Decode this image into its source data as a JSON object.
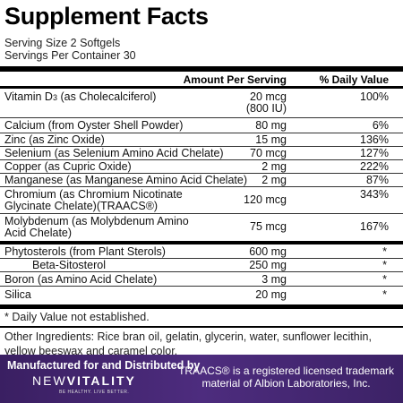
{
  "title": "Supplement Facts",
  "serving_size": "Serving Size 2 Softgels",
  "servings_per_container": "Servings Per Container 30",
  "headers": {
    "amount": "Amount Per Serving",
    "dv": "% Daily Value"
  },
  "rows": [
    {
      "name": [
        "Vitamin D3 (as Cholecalciferol)"
      ],
      "amount": [
        "20 mcg",
        "(800 IU)"
      ],
      "dv": "100%"
    },
    {
      "name": [
        "Calcium (from Oyster Shell Powder)"
      ],
      "amount": [
        "80 mg"
      ],
      "dv": "6%"
    },
    {
      "name": [
        "Zinc (as Zinc Oxide)"
      ],
      "amount": [
        "15 mg"
      ],
      "dv": "136%"
    },
    {
      "name": [
        "Selenium (as Selenium Amino Acid Chelate)"
      ],
      "amount": [
        "70 mcg"
      ],
      "dv": "127%"
    },
    {
      "name": [
        "Copper (as Cupric Oxide)"
      ],
      "amount": [
        "2 mg"
      ],
      "dv": "222%"
    },
    {
      "name": [
        "Manganese (as Manganese Amino Acid Chelate)"
      ],
      "amount": [
        "2 mg"
      ],
      "dv": "87%"
    },
    {
      "name": [
        "Chromium (as Chromium Nicotinate",
        "Glycinate Chelate)(TRAACS®)"
      ],
      "amount": [
        "120 mcg"
      ],
      "dv": "343%"
    },
    {
      "name": [
        "Molybdenum (as Molybdenum Amino",
        "Acid Chelate)"
      ],
      "amount": [
        "75 mcg"
      ],
      "dv": "167%"
    },
    {
      "name": [
        "Phytosterols (from Plant Sterols)"
      ],
      "amount": [
        "600 mg"
      ],
      "dv": "*"
    },
    {
      "name": [
        "Beta-Sitosterol"
      ],
      "amount": [
        "250 mg"
      ],
      "dv": "*"
    },
    {
      "name": [
        "Boron (as Amino Acid Chelate)"
      ],
      "amount": [
        "3 mg"
      ],
      "dv": "*"
    },
    {
      "name": [
        "Silica"
      ],
      "amount": [
        "20 mg"
      ],
      "dv": "*"
    }
  ],
  "footnote": "* Daily Value not established.",
  "other_ingredients": "Other Ingredients: Rice bran oil, gelatin, glycerin, water, sunflower lecithin, yellow beeswax and caramel color.",
  "manufacturer": "Manufactured for and Distributed by",
  "brand": {
    "part1": "NEW",
    "part2": "VITALITY",
    "tagline": "BE HEALTHY. LIVE BETTER."
  },
  "trademark": [
    "TRAACS® is a registered licensed trademark",
    "material of Albion Laboratories, Inc."
  ],
  "colors": {
    "band": "#4a2a7a",
    "rule": "#000000"
  }
}
